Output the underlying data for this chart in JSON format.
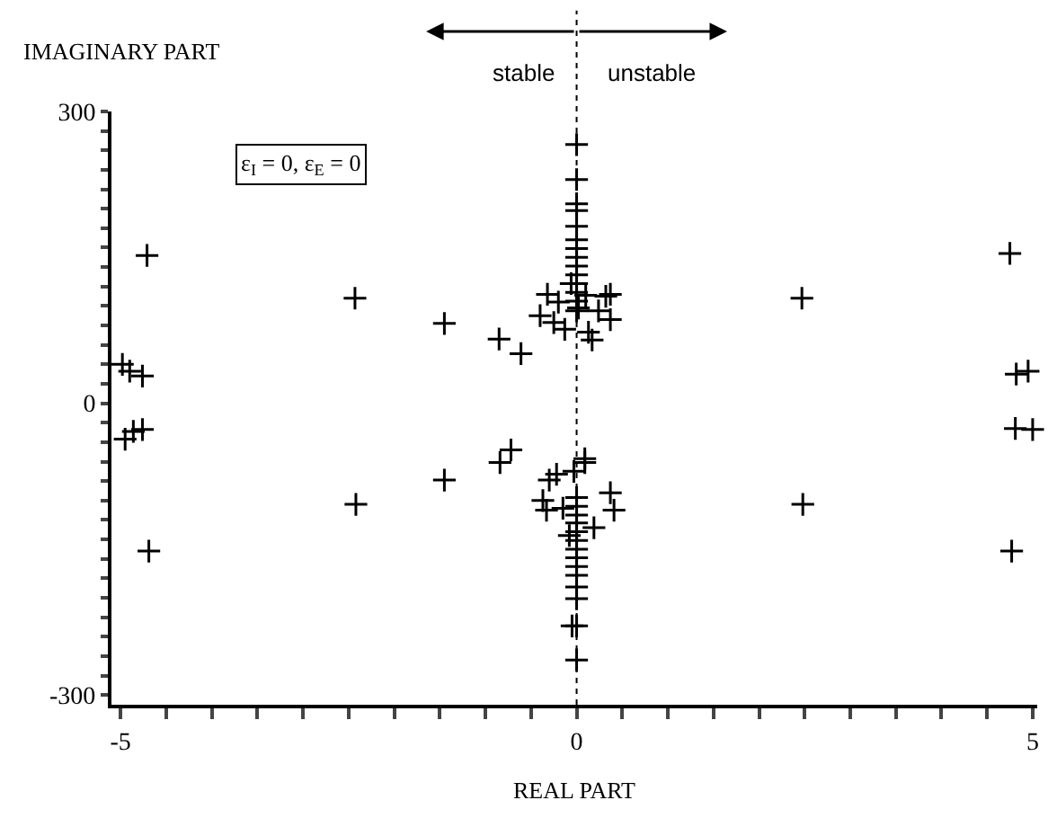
{
  "chart_data": {
    "type": "scatter",
    "xlabel": "REAL PART",
    "ylabel": "IMAGINARY PART",
    "annotations": [
      "stable",
      "unstable",
      "ε$_{I}$ = 0, ε$_{E}$ = 0"
    ],
    "ref_lines": [
      {
        "axis": "x",
        "value": 0,
        "line_style": "dotted",
        "color": "#000000"
      }
    ],
    "marker": "cross",
    "xlim": [
      -5.1,
      5.05
    ],
    "ylim": [
      -310,
      300
    ],
    "xticks": [
      -5,
      {
        "value": -4.5,
        "label": null
      },
      {
        "value": -4,
        "label": null
      },
      {
        "value": -3.5,
        "label": null
      },
      {
        "value": -3,
        "label": null
      },
      {
        "value": -2.5,
        "label": null
      },
      {
        "value": -2,
        "label": null
      },
      {
        "value": -1.5,
        "label": null
      },
      {
        "value": -1,
        "label": null
      },
      {
        "value": -0.5,
        "label": null
      },
      0,
      {
        "value": 0.5,
        "label": null
      },
      {
        "value": 1,
        "label": null
      },
      {
        "value": 1.5,
        "label": null
      },
      {
        "value": 2,
        "label": null
      },
      {
        "value": 2.5,
        "label": null
      },
      {
        "value": 3,
        "label": null
      },
      {
        "value": 3.5,
        "label": null
      },
      {
        "value": 4,
        "label": null
      },
      {
        "value": 4.5,
        "label": null
      },
      5
    ],
    "yticks": [
      -300,
      {
        "value": -280,
        "label": null
      },
      {
        "value": -260,
        "label": null
      },
      {
        "value": -240,
        "label": null
      },
      {
        "value": -220,
        "label": null
      },
      {
        "value": -200,
        "label": null
      },
      {
        "value": -180,
        "label": null
      },
      {
        "value": -160,
        "label": null
      },
      {
        "value": -140,
        "label": null
      },
      {
        "value": -120,
        "label": null
      },
      {
        "value": -100,
        "label": null
      },
      {
        "value": -80,
        "label": null
      },
      {
        "value": -60,
        "label": null
      },
      {
        "value": -40,
        "label": null
      },
      {
        "value": -20,
        "label": null
      },
      0,
      {
        "value": 20,
        "label": null
      },
      {
        "value": 40,
        "label": null
      },
      {
        "value": 60,
        "label": null
      },
      {
        "value": 80,
        "label": null
      },
      {
        "value": 100,
        "label": null
      },
      {
        "value": 120,
        "label": null
      },
      {
        "value": 140,
        "label": null
      },
      {
        "value": 160,
        "label": null
      },
      {
        "value": 180,
        "label": null
      },
      {
        "value": 200,
        "label": null
      },
      {
        "value": 220,
        "label": null
      },
      {
        "value": 240,
        "label": null
      },
      {
        "value": 260,
        "label": null
      },
      {
        "value": 280,
        "label": null
      },
      300
    ],
    "series": [
      {
        "color": "#000000",
        "x": [
          -4.71,
          -4.98,
          -4.9,
          -4.76,
          -2.43,
          -1.45,
          -0.85,
          -0.61,
          0,
          0,
          0,
          0,
          0,
          0,
          0,
          0,
          0,
          0,
          0,
          0,
          0,
          0,
          -0.32,
          -0.2,
          -0.4,
          -0.25,
          -0.13,
          -0.06,
          0.1,
          0.32,
          0.37,
          0.24,
          0.37,
          0.13,
          0.17,
          0.02,
          2.47,
          4.75,
          4.82,
          4.95,
          4.81,
          5.0,
          -4.95,
          -4.86,
          -4.76,
          -4.69,
          -2.42,
          -1.45,
          -0.84,
          -0.72,
          0,
          -0.05,
          0,
          0,
          0,
          0,
          0,
          0,
          0,
          0,
          0,
          0,
          0,
          0,
          0,
          -0.3,
          -0.22,
          -0.37,
          -0.33,
          -0.15,
          -0.03,
          0.09,
          0.09,
          0.37,
          0.41,
          0.19,
          -0.08,
          2.48,
          4.77
        ],
        "values": [
          152,
          40,
          33,
          28,
          108,
          82,
          66,
          51,
          266,
          230,
          205,
          198,
          182,
          168,
          159,
          150,
          141,
          132,
          123,
          114,
          105,
          95,
          112,
          104,
          90,
          83,
          76,
          123,
          111,
          110,
          112,
          95,
          86,
          73,
          65,
          98,
          108,
          154,
          30,
          33,
          -26,
          -27,
          -37,
          -29,
          -27,
          -152,
          -104,
          -79,
          -61,
          -48,
          -264,
          -229,
          -229,
          -201,
          -189,
          -177,
          -168,
          -159,
          -150,
          -141,
          -132,
          -123,
          -115,
          -106,
          -97,
          -79,
          -73,
          -100,
          -110,
          -108,
          -70,
          -57,
          -61,
          -92,
          -110,
          -128,
          -136,
          -104,
          -152
        ]
      }
    ]
  }
}
